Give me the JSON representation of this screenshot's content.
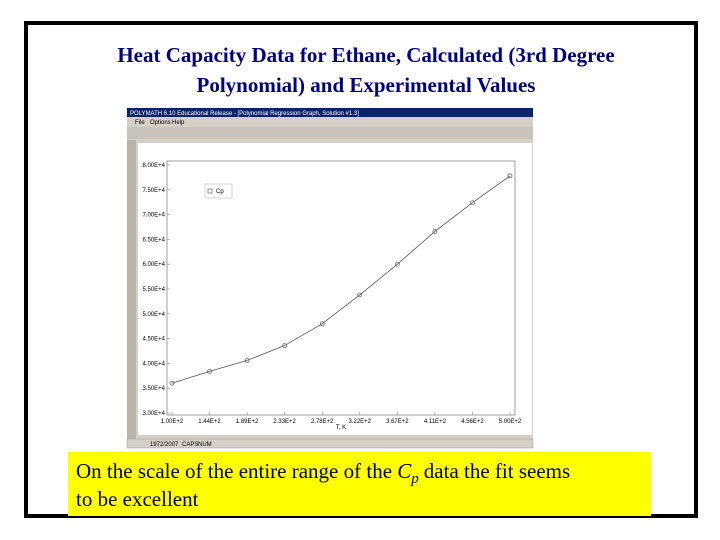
{
  "slide_title": [
    "Heat Capacity Data for Ethane, Calculated (3rd Degree",
    "Polynomial) and Experimental Values"
  ],
  "window": {
    "title": "POLYMATH 6.10 Educational Release - [Polynomial Regression Graph, Solution #1.3]",
    "menu": [
      "File",
      "Options",
      "Help"
    ],
    "status": [
      "1972/2007",
      "CAPS",
      "NUM"
    ]
  },
  "chart_data": {
    "type": "scatter",
    "x_label": "T, K",
    "x": [
      100,
      144.4,
      188.9,
      233.3,
      277.8,
      322.2,
      366.7,
      411.1,
      455.6,
      500
    ],
    "series": [
      {
        "name": "Cp",
        "color": "#555555",
        "values": [
          36000,
          38400,
          40600,
          43600,
          48000,
          53800,
          60000,
          66600,
          72400,
          77800
        ]
      }
    ],
    "xlim": [
      100,
      500
    ],
    "xticks": [
      {
        "value": 100,
        "label": "1.00E+2"
      },
      {
        "value": 144.4,
        "label": "1.44E+2"
      },
      {
        "value": 188.9,
        "label": "1.89E+2"
      },
      {
        "value": 233.3,
        "label": "2.33E+2"
      },
      {
        "value": 277.8,
        "label": "2.78E+2"
      },
      {
        "value": 322.2,
        "label": "3.22E+2"
      },
      {
        "value": 366.7,
        "label": "3.67E+2"
      },
      {
        "value": 411.1,
        "label": "4.11E+2"
      },
      {
        "value": 455.6,
        "label": "4.56E+2"
      },
      {
        "value": 500,
        "label": "5.00E+2"
      }
    ],
    "ylim": [
      30000,
      80000
    ],
    "yticks": [
      {
        "value": 30000,
        "label": "3.00E+4"
      },
      {
        "value": 35000,
        "label": "3.50E+4"
      },
      {
        "value": 40000,
        "label": "4.00E+4"
      },
      {
        "value": 45000,
        "label": "4.50E+4"
      },
      {
        "value": 50000,
        "label": "5.00E+4"
      },
      {
        "value": 55000,
        "label": "5.50E+4"
      },
      {
        "value": 60000,
        "label": "6.00E+4"
      },
      {
        "value": 65000,
        "label": "6.50E+4"
      },
      {
        "value": 70000,
        "label": "7.00E+4"
      },
      {
        "value": 75000,
        "label": "7.50E+4"
      },
      {
        "value": 80000,
        "label": "8.00E+4"
      }
    ],
    "legend": "upper left"
  },
  "caption": {
    "before": "On the scale of the entire range of the",
    "symbol": "C",
    "subscript": "p",
    "after": "data the fit seems",
    "line2": "to be excellent"
  }
}
